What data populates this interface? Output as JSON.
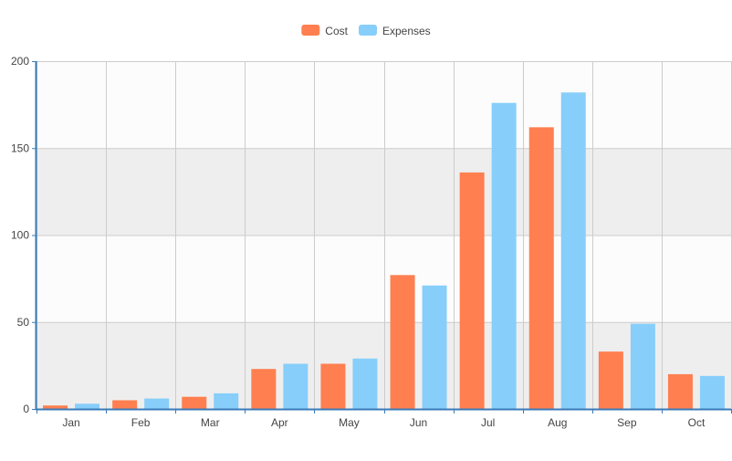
{
  "chart_data": {
    "type": "bar",
    "categories": [
      "Jan",
      "Feb",
      "Mar",
      "Apr",
      "May",
      "Jun",
      "Jul",
      "Aug",
      "Sep",
      "Oct"
    ],
    "series": [
      {
        "name": "Cost",
        "color": "#FF7F50",
        "values": [
          2,
          5,
          7,
          23,
          26,
          77,
          136,
          162,
          33,
          20
        ]
      },
      {
        "name": "Expenses",
        "color": "#87CEFA",
        "values": [
          3,
          6,
          9,
          26,
          29,
          71,
          176,
          182,
          49,
          19
        ]
      }
    ],
    "ylim": [
      0,
      200
    ],
    "yticks": [
      0,
      50,
      100,
      150,
      200
    ],
    "grid": true,
    "legend_position": "top-center",
    "band_colors": [
      "#FCFCFC",
      "#EEEEEE"
    ],
    "axis_color": "#3A7BB8"
  }
}
